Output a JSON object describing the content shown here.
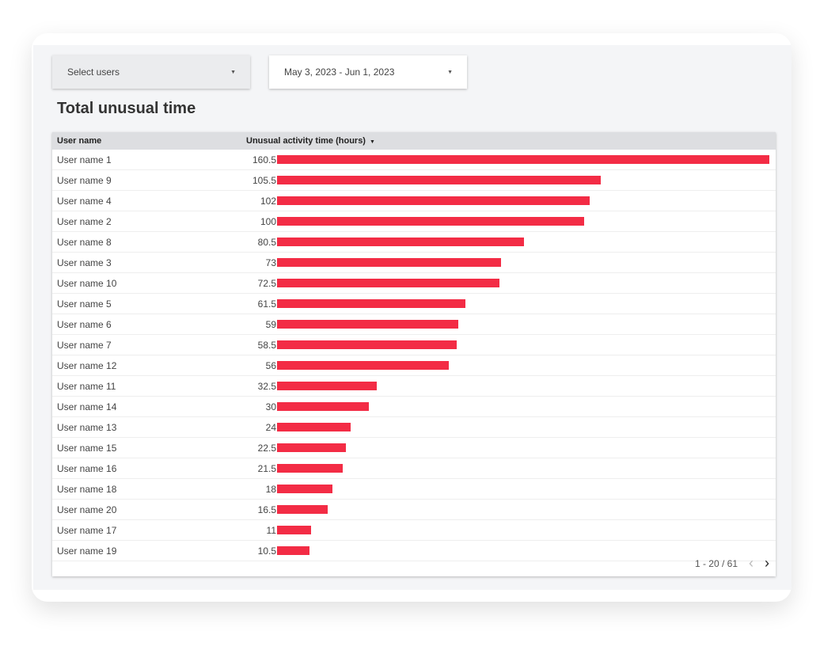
{
  "filters": {
    "users_label": "Select users",
    "date_range": "May 3, 2023 - Jun 1, 2023"
  },
  "title": "Total unusual time",
  "table": {
    "headers": [
      "User name",
      "Unusual activity time (hours)"
    ],
    "sort_icon": "caret-down-icon",
    "bar_color": "#f32c45",
    "rows": [
      {
        "name": "User name 1",
        "value": 160.5
      },
      {
        "name": "User name 9",
        "value": 105.5
      },
      {
        "name": "User name 4",
        "value": 102
      },
      {
        "name": "User name 2",
        "value": 100
      },
      {
        "name": "User name 8",
        "value": 80.5
      },
      {
        "name": "User name 3",
        "value": 73
      },
      {
        "name": "User name 10",
        "value": 72.5
      },
      {
        "name": "User name 5",
        "value": 61.5
      },
      {
        "name": "User name 6",
        "value": 59
      },
      {
        "name": "User name 7",
        "value": 58.5
      },
      {
        "name": "User name 12",
        "value": 56
      },
      {
        "name": "User name 11",
        "value": 32.5
      },
      {
        "name": "User name 14",
        "value": 30
      },
      {
        "name": "User name 13",
        "value": 24
      },
      {
        "name": "User name 15",
        "value": 22.5
      },
      {
        "name": "User name 16",
        "value": 21.5
      },
      {
        "name": "User name 18",
        "value": 18
      },
      {
        "name": "User name 20",
        "value": 16.5
      },
      {
        "name": "User name 17",
        "value": 11
      },
      {
        "name": "User name 19",
        "value": 10.5
      }
    ]
  },
  "pagination": {
    "label": "1 - 20 / 61",
    "prev": "‹",
    "next": "›"
  }
}
